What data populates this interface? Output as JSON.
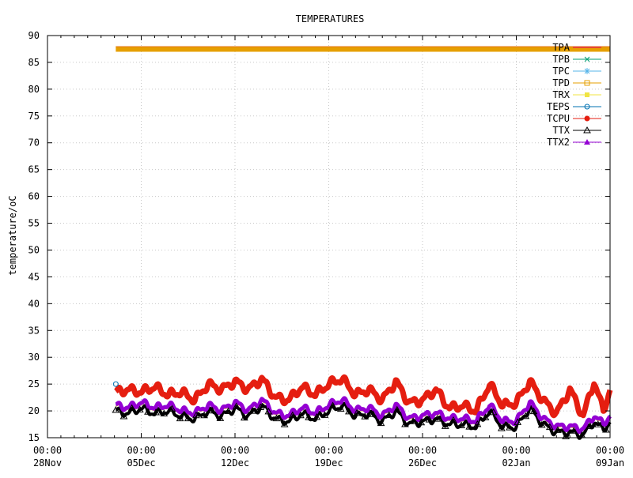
{
  "chart_data": {
    "type": "line",
    "title": "TEMPERATURES",
    "ylabel": "temperature/oC",
    "xlabel": "",
    "ylim": [
      15,
      90
    ],
    "yticks": [
      15,
      20,
      25,
      30,
      35,
      40,
      45,
      50,
      55,
      60,
      65,
      70,
      75,
      80,
      85,
      90
    ],
    "x_range_days": [
      0,
      42
    ],
    "xticks": [
      {
        "day": 0,
        "time": "00:00",
        "date": "28Nov"
      },
      {
        "day": 7,
        "time": "00:00",
        "date": "05Dec"
      },
      {
        "day": 14,
        "time": "00:00",
        "date": "12Dec"
      },
      {
        "day": 21,
        "time": "00:00",
        "date": "19Dec"
      },
      {
        "day": 28,
        "time": "00:00",
        "date": "26Dec"
      },
      {
        "day": 35,
        "time": "00:00",
        "date": "02Jan"
      },
      {
        "day": 42,
        "time": "00:00",
        "date": "09Jan"
      }
    ],
    "grid": true,
    "legend_position": "top-right",
    "data_start_day": 5.1,
    "data_end_day": 42,
    "series": [
      {
        "name": "TPA",
        "color": "#e5005c",
        "marker": "none",
        "values": [
          87.5,
          87.5
        ]
      },
      {
        "name": "TPB",
        "color": "#009e73",
        "marker": "x",
        "values": [
          21.5,
          21.5
        ]
      },
      {
        "name": "TPC",
        "color": "#56b4e9",
        "marker": "star",
        "values": [
          21,
          21
        ]
      },
      {
        "name": "TPD",
        "color": "#e69f00",
        "marker": "square-open",
        "values": [
          87.5,
          87.5
        ]
      },
      {
        "name": "TRX",
        "color": "#f0e442",
        "marker": "square",
        "values": [
          21,
          21
        ]
      },
      {
        "name": "TEPS",
        "color": "#0072b2",
        "marker": "circle-open",
        "values": [
          25,
          20
        ]
      },
      {
        "name": "TCPU",
        "color": "#e51e10",
        "marker": "circle",
        "values": [
          23.5,
          22
        ]
      },
      {
        "name": "TTX",
        "color": "#000000",
        "marker": "triangle-open",
        "values": [
          20,
          16
        ]
      },
      {
        "name": "TTX2",
        "color": "#9400d3",
        "marker": "triangle",
        "values": [
          21,
          17
        ]
      }
    ],
    "profiles": {
      "TCPU": [
        [
          5.1,
          23.5
        ],
        [
          6,
          24
        ],
        [
          7,
          23.5
        ],
        [
          8,
          24.5
        ],
        [
          9,
          23
        ],
        [
          10,
          23.5
        ],
        [
          11,
          22
        ],
        [
          12,
          25
        ],
        [
          13,
          24
        ],
        [
          14,
          25.5
        ],
        [
          15,
          24
        ],
        [
          16,
          26
        ],
        [
          17,
          22.5
        ],
        [
          18,
          22
        ],
        [
          19,
          24.5
        ],
        [
          20,
          23
        ],
        [
          21,
          25
        ],
        [
          22,
          26
        ],
        [
          23,
          23
        ],
        [
          24,
          24
        ],
        [
          25,
          22
        ],
        [
          26,
          25.5
        ],
        [
          27,
          21.5
        ],
        [
          28,
          22
        ],
        [
          29,
          24
        ],
        [
          30,
          20.5
        ],
        [
          31,
          21
        ],
        [
          32,
          20
        ],
        [
          33,
          25
        ],
        [
          34,
          21
        ],
        [
          35,
          21.5
        ],
        [
          36,
          25.5
        ],
        [
          37,
          22
        ],
        [
          38,
          19.5
        ],
        [
          39,
          24
        ],
        [
          40,
          19
        ],
        [
          40.8,
          25.5
        ],
        [
          41.5,
          20
        ],
        [
          42,
          24
        ]
      ],
      "TTX": [
        [
          5.1,
          20
        ],
        [
          6,
          19.5
        ],
        [
          7,
          20.5
        ],
        [
          8,
          19.5
        ],
        [
          9,
          20
        ],
        [
          10,
          19
        ],
        [
          11,
          18.5
        ],
        [
          12,
          20
        ],
        [
          13,
          19
        ],
        [
          14,
          20.5
        ],
        [
          15,
          19
        ],
        [
          16,
          21
        ],
        [
          17,
          18.5
        ],
        [
          18,
          18
        ],
        [
          19,
          19.5
        ],
        [
          20,
          18.5
        ],
        [
          21,
          20
        ],
        [
          22,
          21
        ],
        [
          23,
          19
        ],
        [
          24,
          19.5
        ],
        [
          25,
          18
        ],
        [
          26,
          20
        ],
        [
          27,
          17.5
        ],
        [
          28,
          18
        ],
        [
          29,
          18.5
        ],
        [
          30,
          17.5
        ],
        [
          31,
          17.5
        ],
        [
          32,
          17
        ],
        [
          33,
          20
        ],
        [
          34,
          17
        ],
        [
          35,
          17
        ],
        [
          36,
          20.5
        ],
        [
          37,
          17.5
        ],
        [
          38,
          16
        ],
        [
          39,
          16
        ],
        [
          40,
          15.5
        ],
        [
          40.8,
          18
        ],
        [
          41.5,
          16.5
        ],
        [
          42,
          18
        ]
      ]
    }
  }
}
